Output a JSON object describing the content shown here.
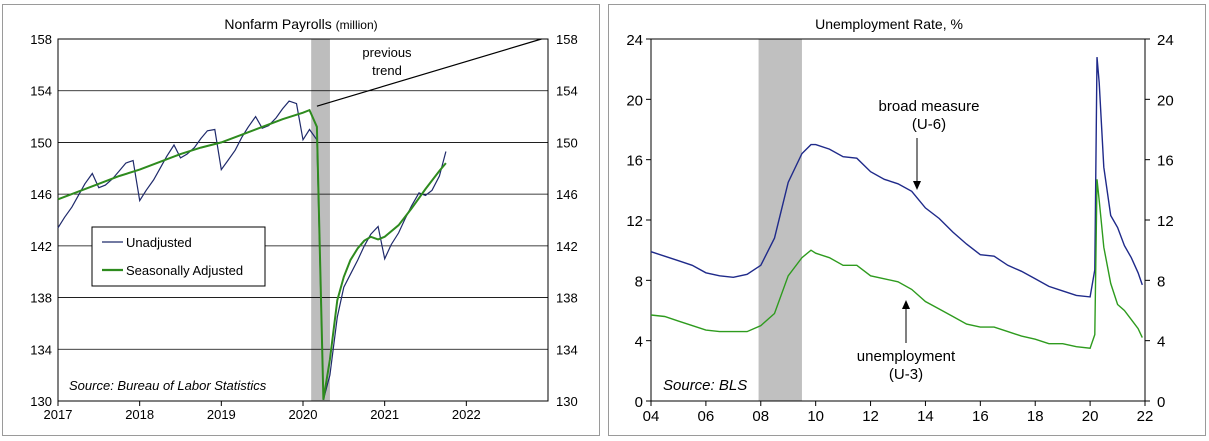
{
  "chart_data": [
    {
      "type": "line",
      "title": "Nonfarm Payrolls",
      "title_unit": "(million)",
      "x_ticks": [
        "2017",
        "2018",
        "2019",
        "2020",
        "2021",
        "2022"
      ],
      "y_ticks": [
        "130",
        "134",
        "138",
        "142",
        "146",
        "150",
        "154",
        "158"
      ],
      "xlim": [
        2017,
        2023
      ],
      "ylim": [
        130,
        158
      ],
      "grid": "horizontal",
      "shaded_region": [
        2020.1,
        2020.33
      ],
      "legend_position": "middle-left",
      "annotations": {
        "trend_label": "previous\ntrend",
        "source": "Source: Bureau of Labor Statistics"
      },
      "series": [
        {
          "name": "Unadjusted",
          "color": "#1f2a6b",
          "x": [
            2017.0,
            2017.08,
            2017.17,
            2017.25,
            2017.33,
            2017.42,
            2017.5,
            2017.58,
            2017.67,
            2017.75,
            2017.83,
            2017.92,
            2018.0,
            2018.08,
            2018.17,
            2018.25,
            2018.33,
            2018.42,
            2018.5,
            2018.58,
            2018.67,
            2018.75,
            2018.83,
            2018.92,
            2019.0,
            2019.08,
            2019.17,
            2019.25,
            2019.33,
            2019.42,
            2019.5,
            2019.58,
            2019.67,
            2019.75,
            2019.83,
            2019.92,
            2020.0,
            2020.08,
            2020.17,
            2020.25,
            2020.33,
            2020.42,
            2020.5,
            2020.58,
            2020.67,
            2020.75,
            2020.83,
            2020.92,
            2021.0,
            2021.08,
            2021.17,
            2021.25,
            2021.33,
            2021.42,
            2021.5,
            2021.58,
            2021.67,
            2021.75
          ],
          "y": [
            143.4,
            144.2,
            145.0,
            145.9,
            146.8,
            147.6,
            146.5,
            146.7,
            147.2,
            147.8,
            148.4,
            148.6,
            145.5,
            146.3,
            147.1,
            148.0,
            148.9,
            149.8,
            148.8,
            149.1,
            149.6,
            150.3,
            150.9,
            151.0,
            147.9,
            148.6,
            149.4,
            150.4,
            151.2,
            152.0,
            151.1,
            151.3,
            151.9,
            152.6,
            153.2,
            153.0,
            150.2,
            151.0,
            150.2,
            130.1,
            132.0,
            136.5,
            138.8,
            139.8,
            140.9,
            142.0,
            142.9,
            143.5,
            141.0,
            142.1,
            143.0,
            144.1,
            145.1,
            146.1,
            145.9,
            146.3,
            147.4,
            149.3
          ]
        },
        {
          "name": "Seasonally Adjusted",
          "color": "#2e8b1e",
          "x": [
            2017.0,
            2017.25,
            2017.5,
            2017.75,
            2018.0,
            2018.25,
            2018.5,
            2018.75,
            2019.0,
            2019.25,
            2019.5,
            2019.75,
            2020.0,
            2020.08,
            2020.17,
            2020.25,
            2020.33,
            2020.42,
            2020.5,
            2020.58,
            2020.67,
            2020.75,
            2020.83,
            2020.92,
            2021.0,
            2021.17,
            2021.33,
            2021.5,
            2021.67,
            2021.75
          ],
          "y": [
            145.6,
            146.2,
            146.8,
            147.4,
            147.9,
            148.5,
            149.1,
            149.6,
            150.0,
            150.6,
            151.2,
            151.8,
            152.3,
            152.5,
            151.2,
            130.1,
            133.2,
            137.8,
            139.6,
            140.9,
            141.8,
            142.4,
            142.7,
            142.5,
            142.7,
            143.6,
            144.9,
            146.4,
            147.8,
            148.4
          ]
        },
        {
          "name": "",
          "color": "#000000",
          "x": [
            2020.17,
            2022.92
          ],
          "y": [
            152.8,
            158.0
          ]
        }
      ]
    },
    {
      "type": "line",
      "title": "Unemployment Rate, %",
      "x_ticks": [
        "04",
        "06",
        "08",
        "10",
        "12",
        "14",
        "16",
        "18",
        "20",
        "22"
      ],
      "y_ticks": [
        "0",
        "4",
        "8",
        "12",
        "16",
        "20",
        "24"
      ],
      "xlim": [
        2004,
        2022
      ],
      "ylim": [
        0,
        24
      ],
      "grid": "off",
      "shaded_region": [
        2007.92,
        2009.5
      ],
      "annotations": {
        "u6_label_1": "broad measure",
        "u6_label_2": "(U-6)",
        "u3_label_1": "unemployment",
        "u3_label_2": "(U-3)",
        "source": "Source: BLS"
      },
      "series": [
        {
          "name": "broad measure (U-6)",
          "color": "#1f2a8a",
          "x": [
            2004.0,
            2004.5,
            2005.0,
            2005.5,
            2006.0,
            2006.5,
            2007.0,
            2007.5,
            2008.0,
            2008.5,
            2009.0,
            2009.5,
            2009.83,
            2010.0,
            2010.5,
            2011.0,
            2011.5,
            2012.0,
            2012.5,
            2013.0,
            2013.5,
            2014.0,
            2014.5,
            2015.0,
            2015.5,
            2016.0,
            2016.5,
            2017.0,
            2017.5,
            2018.0,
            2018.5,
            2019.0,
            2019.5,
            2020.0,
            2020.17,
            2020.25,
            2020.33,
            2020.5,
            2020.75,
            2021.0,
            2021.25,
            2021.5,
            2021.75,
            2021.9
          ],
          "y": [
            9.9,
            9.6,
            9.3,
            9.0,
            8.5,
            8.3,
            8.2,
            8.4,
            9.0,
            10.8,
            14.5,
            16.4,
            17.0,
            17.0,
            16.7,
            16.2,
            16.1,
            15.2,
            14.7,
            14.4,
            13.9,
            12.8,
            12.1,
            11.2,
            10.4,
            9.7,
            9.6,
            9.0,
            8.6,
            8.1,
            7.6,
            7.3,
            7.0,
            6.9,
            8.7,
            22.8,
            21.1,
            15.5,
            12.3,
            11.5,
            10.3,
            9.5,
            8.5,
            7.7
          ]
        },
        {
          "name": "unemployment (U-3)",
          "color": "#2e9b1e",
          "x": [
            2004.0,
            2004.5,
            2005.0,
            2005.5,
            2006.0,
            2006.5,
            2007.0,
            2007.5,
            2008.0,
            2008.5,
            2009.0,
            2009.5,
            2009.83,
            2010.0,
            2010.5,
            2011.0,
            2011.5,
            2012.0,
            2012.5,
            2013.0,
            2013.5,
            2014.0,
            2014.5,
            2015.0,
            2015.5,
            2016.0,
            2016.5,
            2017.0,
            2017.5,
            2018.0,
            2018.5,
            2019.0,
            2019.5,
            2020.0,
            2020.17,
            2020.25,
            2020.33,
            2020.5,
            2020.75,
            2021.0,
            2021.25,
            2021.5,
            2021.75,
            2021.9
          ],
          "y": [
            5.7,
            5.6,
            5.3,
            5.0,
            4.7,
            4.6,
            4.6,
            4.6,
            5.0,
            5.8,
            8.3,
            9.5,
            10.0,
            9.8,
            9.5,
            9.0,
            9.0,
            8.3,
            8.1,
            7.9,
            7.4,
            6.6,
            6.1,
            5.6,
            5.1,
            4.9,
            4.9,
            4.6,
            4.3,
            4.1,
            3.8,
            3.8,
            3.6,
            3.5,
            4.4,
            14.7,
            13.3,
            10.2,
            7.8,
            6.4,
            6.0,
            5.4,
            4.8,
            4.2
          ]
        }
      ]
    }
  ]
}
